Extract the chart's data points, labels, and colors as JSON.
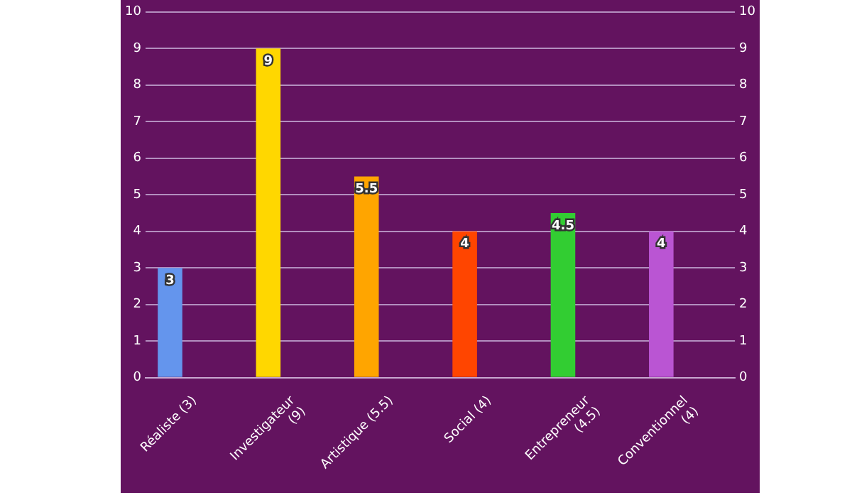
{
  "chart_data": {
    "type": "bar",
    "categories": [
      "Réaliste (3)",
      "Investigateur (9)",
      "Artistique (5.5)",
      "Social (4)",
      "Entrepreneur (4.5)",
      "Conventionnel (4)"
    ],
    "values": [
      3,
      9,
      5.5,
      4,
      4.5,
      4
    ],
    "colors": [
      "#6495ed",
      "#ffd700",
      "#ffa500",
      "#ff4500",
      "#32cd32",
      "#ba55d3"
    ],
    "ylim": [
      0,
      10
    ],
    "yticks": [
      0,
      1,
      2,
      3,
      4,
      5,
      6,
      7,
      8,
      9,
      10
    ],
    "y2lim": [
      0,
      10
    ],
    "y2ticks": [
      0,
      1,
      2,
      3,
      4,
      5,
      6,
      7,
      8,
      9,
      10
    ],
    "grid": "y",
    "data_labels": true
  }
}
